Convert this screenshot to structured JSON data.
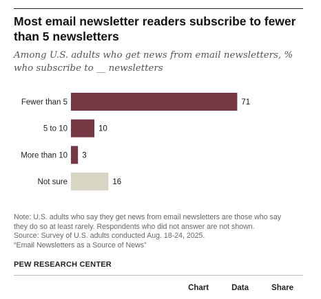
{
  "title": "Most email newsletter readers subscribe to fewer than 5 newsletters",
  "subtitle": "Among U.S. adults who get news from email newsletters, % who subscribe to __ newsletters",
  "note": {
    "line1": "Note: U.S. adults who say they get news from email newsletters are those who say",
    "line2": "they do so at least rarely. Respondents who did not answer are not shown.",
    "line3": "Source: Survey of U.S. adults conducted Aug. 18-24, 2025.",
    "line4": "“Email Newsletters as a Source of News”"
  },
  "source_org": "PEW RESEARCH CENTER",
  "tabs": {
    "chart": "Chart",
    "data": "Data",
    "share": "Share"
  },
  "colors": {
    "primary_bar": "#763844",
    "not_sure_bar": "#d8d5c2"
  },
  "chart_data": {
    "type": "bar",
    "orientation": "horizontal",
    "categories": [
      "Fewer than 5",
      "5 to 10",
      "More than 10",
      "Not sure"
    ],
    "values": [
      71,
      10,
      3,
      16
    ],
    "value_labels": [
      "71",
      "10",
      "3",
      "16"
    ],
    "bar_colors": [
      "#763844",
      "#763844",
      "#763844",
      "#d8d5c2"
    ],
    "xlim": [
      0,
      100
    ],
    "grid": false,
    "legend": "none",
    "axis_lines": false
  }
}
